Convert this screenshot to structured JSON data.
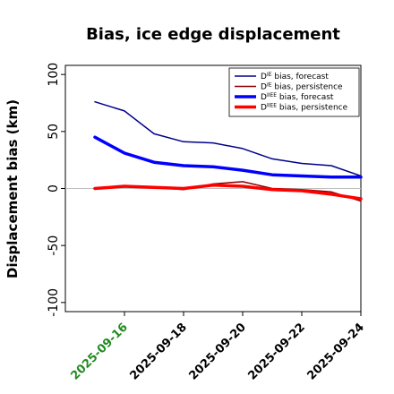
{
  "chart_data": {
    "type": "line",
    "title": "Bias, ice edge displacement",
    "ylabel": "Displacement bias (km)",
    "xlabel": "",
    "ylim": [
      -108,
      108
    ],
    "yticks": [
      -100,
      -50,
      0,
      50,
      100
    ],
    "grid": false,
    "legend_position": "top-right",
    "x_dates": [
      "2025-09-15",
      "2025-09-16",
      "2025-09-17",
      "2025-09-18",
      "2025-09-19",
      "2025-09-20",
      "2025-09-21",
      "2025-09-22",
      "2025-09-23",
      "2025-09-24"
    ],
    "x_range": [
      "2025-09-14",
      "2025-09-24"
    ],
    "x_tick_labels": [
      {
        "date": "2025-09-16",
        "label": "2025-09-16",
        "color": "#228b22"
      },
      {
        "date": "2025-09-18",
        "label": "2025-09-18",
        "color": "#000000"
      },
      {
        "date": "2025-09-20",
        "label": "2025-09-20",
        "color": "#000000"
      },
      {
        "date": "2025-09-22",
        "label": "2025-09-22",
        "color": "#000000"
      },
      {
        "date": "2025-09-24",
        "label": "2025-09-24",
        "color": "#000000"
      }
    ],
    "reference_line": {
      "y": 0,
      "color": "#bfbfbf"
    },
    "series": [
      {
        "name_main": "D",
        "name_sup": "IE",
        "name_rest": " bias, forecast",
        "color": "#00008b",
        "width": 1.5,
        "values": [
          76,
          68,
          48,
          41,
          40,
          35,
          26,
          22,
          20,
          11
        ]
      },
      {
        "name_main": "D",
        "name_sup": "IE",
        "name_rest": " bias, persistence",
        "color": "#8b0000",
        "width": 1.5,
        "values": [
          0,
          2,
          1,
          -1,
          4,
          6,
          0,
          -1,
          -3,
          -11
        ]
      },
      {
        "name_main": "D",
        "name_sup": "IIEE",
        "name_rest": " bias, forecast",
        "color": "#0000ff",
        "width": 3.5,
        "values": [
          45,
          31,
          23,
          20,
          19,
          16,
          12,
          11,
          10,
          10
        ]
      },
      {
        "name_main": "D",
        "name_sup": "IIEE",
        "name_rest": " bias, persistence",
        "color": "#ff0000",
        "width": 3.5,
        "values": [
          0,
          2,
          1,
          0,
          3,
          2,
          -1,
          -2,
          -5,
          -9
        ]
      }
    ]
  }
}
